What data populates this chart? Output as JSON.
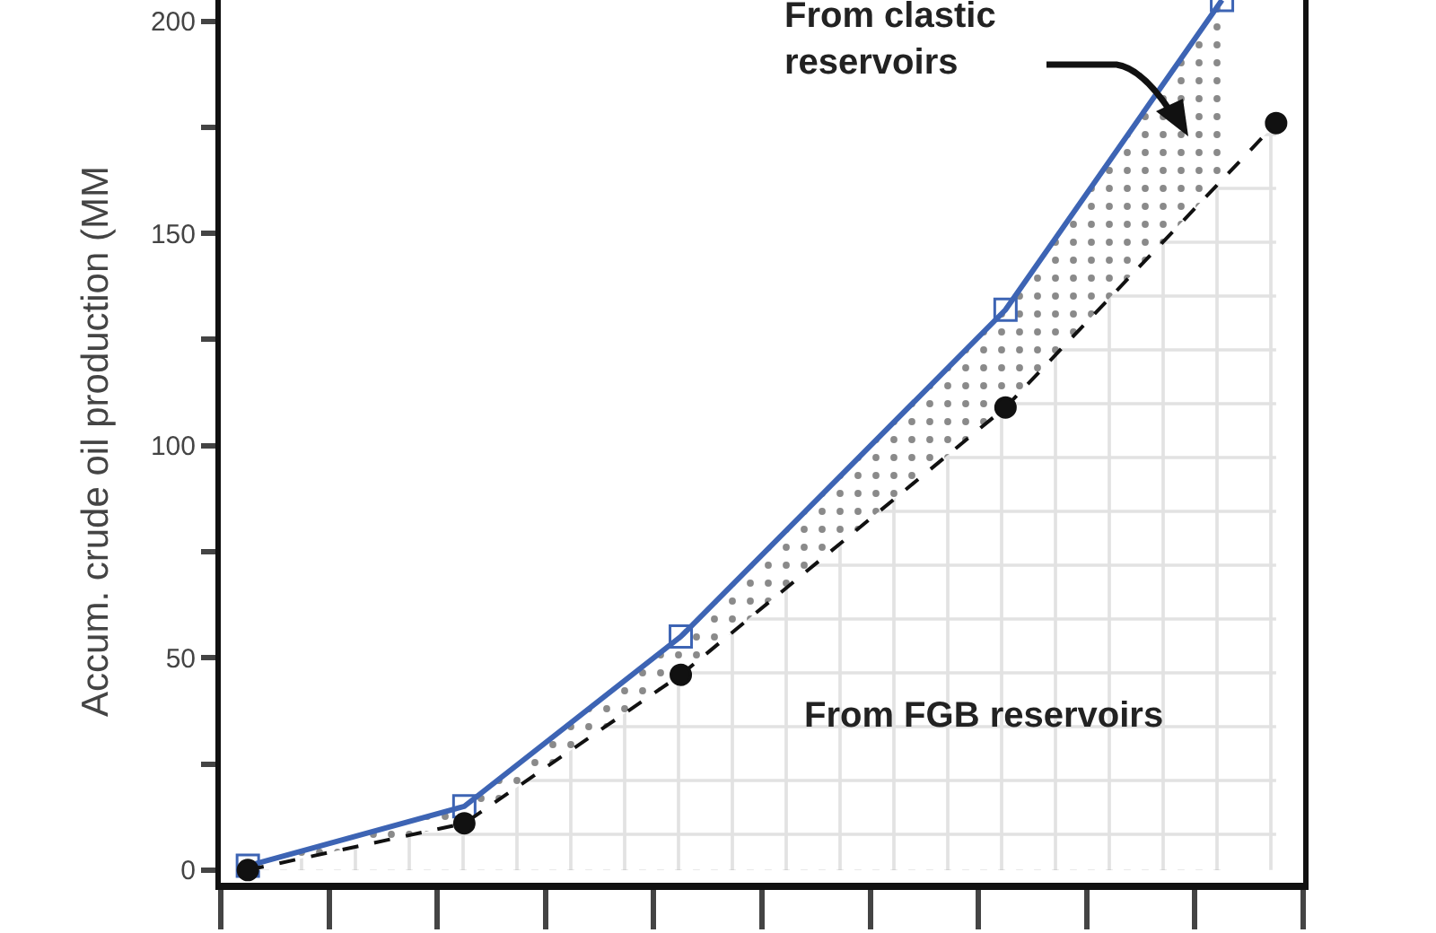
{
  "chart_data": {
    "type": "area",
    "ylabel": "Accum. crude oil production (MM",
    "categories": [
      null,
      null,
      null,
      null,
      null,
      null,
      null,
      null,
      null,
      null,
      null,
      null,
      null,
      null,
      null,
      null,
      null,
      null,
      null,
      null
    ],
    "ylim": [
      -3,
      205
    ],
    "yticks": [
      0,
      {
        "value": 25,
        "label": null
      },
      50,
      {
        "value": 75,
        "label": null
      },
      100,
      {
        "value": 125,
        "label": null
      },
      150,
      {
        "value": 175,
        "label": null
      },
      200
    ],
    "tick_labels": "y",
    "series": [
      {
        "color": "#3d64b4",
        "marker": "square",
        "line_style": "solid",
        "values": [
          1,
          null,
          null,
          null,
          15,
          null,
          null,
          null,
          55,
          null,
          null,
          null,
          null,
          null,
          132,
          null,
          null,
          null,
          205,
          null
        ]
      },
      {
        "color": "#111111",
        "marker": "circle",
        "line_style": "dashed",
        "values": [
          0,
          null,
          null,
          null,
          11,
          null,
          null,
          null,
          46,
          null,
          null,
          null,
          null,
          null,
          109,
          null,
          null,
          null,
          null,
          176
        ]
      }
    ],
    "annotations": [
      "From clastic reservoirs",
      "From FGB reservoirs"
    ]
  }
}
